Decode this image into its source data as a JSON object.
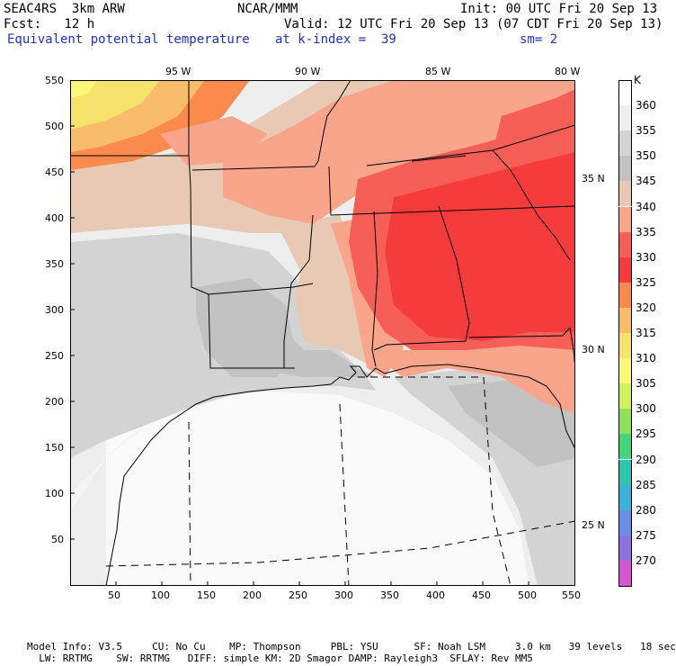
{
  "header": {
    "model": "SEAC4RS  3km ARW",
    "center": "NCAR/MMM",
    "init": "Init: 00 UTC Fri 20 Sep 13",
    "fcst": "Fcst:   12 h",
    "valid": "Valid: 12 UTC Fri 20 Sep 13 (07 CDT Fri 20 Sep 13)",
    "field": "Equivalent potential temperature",
    "level": "at k-index =  39",
    "smooth": "sm= 2"
  },
  "top_ticks": [
    "95 W",
    "90 W",
    "85 W",
    "80 W"
  ],
  "lat_labels": [
    "35 N",
    "30 N",
    "25 N"
  ],
  "y_ticks": [
    "550",
    "500",
    "450",
    "400",
    "350",
    "300",
    "250",
    "200",
    "150",
    "100",
    "50"
  ],
  "x_ticks": [
    "50",
    "100",
    "150",
    "200",
    "250",
    "300",
    "350",
    "400",
    "450",
    "500",
    "550"
  ],
  "colorbar": {
    "unit": "K",
    "levels": [
      {
        "label": "360",
        "color": "#ffffff"
      },
      {
        "label": "355",
        "color": "#eeeeee"
      },
      {
        "label": "350",
        "color": "#d3d3d3"
      },
      {
        "label": "345",
        "color": "#c2c2c2"
      },
      {
        "label": "340",
        "color": "#e8c9b4"
      },
      {
        "label": "335",
        "color": "#f8a58b"
      },
      {
        "label": "330",
        "color": "#f55f57"
      },
      {
        "label": "325",
        "color": "#f53c3c"
      },
      {
        "label": "320",
        "color": "#fa8a4e"
      },
      {
        "label": "315",
        "color": "#f9bc6a"
      },
      {
        "label": "310",
        "color": "#f6e36c"
      },
      {
        "label": "305",
        "color": "#fdf87a"
      },
      {
        "label": "300",
        "color": "#d2f15e"
      },
      {
        "label": "295",
        "color": "#8fe05a"
      },
      {
        "label": "290",
        "color": "#45d37b"
      },
      {
        "label": "285",
        "color": "#2ec7ad"
      },
      {
        "label": "280",
        "color": "#3fb1d8"
      },
      {
        "label": "275",
        "color": "#6e8de6"
      },
      {
        "label": "270",
        "color": "#8f72e0"
      },
      {
        "label": "",
        "color": "#d656d1"
      }
    ]
  },
  "footer": {
    "line1": "Model Info: V3.5     CU: No Cu    MP: Thompson     PBL: YSU      SF: Noah LSM     3.0 km   39 levels   18 sec",
    "line2": "  LW: RRTMG    SW: RRTMG   DIFF: simple KM: 2D Smagor DAMP: Rayleigh3  SFLAY: Rev MM5"
  }
}
